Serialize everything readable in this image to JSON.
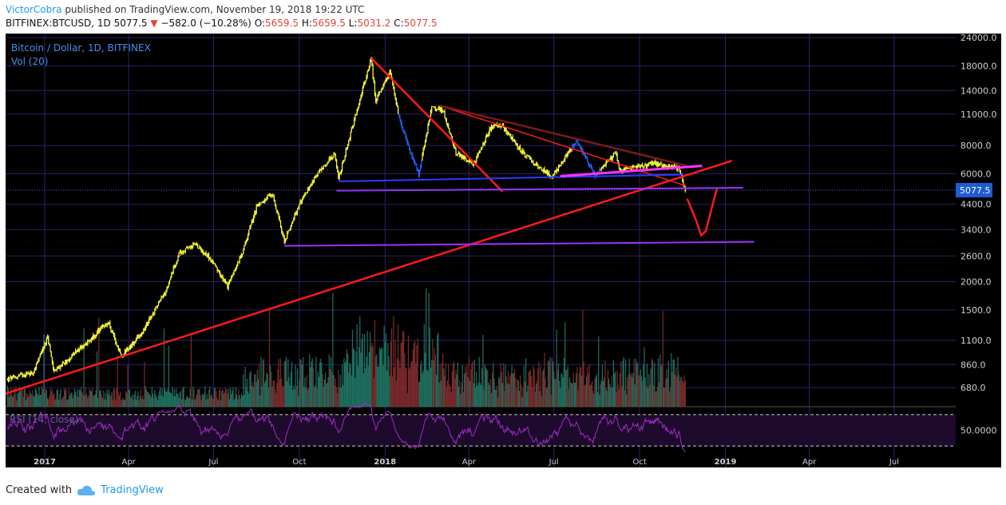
{
  "header": {
    "author": "VictorCobra",
    "published_text": "published on TradingView.com, November 19, 2018 19:22 UTC",
    "symbol_info": "BITFINEX:BTCUSD, 1D",
    "last": "5077.5",
    "change": "−582.0 (−10.28%)",
    "open_label": "O:",
    "open": "5659.5",
    "high_label": "H:",
    "high": "5659.5",
    "low_label": "L:",
    "low": "5031.2",
    "close_label": "C:",
    "close": "5077.5"
  },
  "footer": {
    "created_with": "Created with",
    "brand": "TradingView"
  },
  "colors": {
    "background": "#000000",
    "grid": "#2a2266",
    "candles": "#ffff3a",
    "blue_candles": "#2962ff",
    "red_trendline": "#ff1a1a",
    "pink_line": "#ff33ff",
    "purple_line": "#a030ff",
    "rsi": "#9a2fbf",
    "axis_text": "#cfcfcf",
    "price_tag": "#1e5bd6"
  },
  "chart_data": {
    "type": "candlestick",
    "title": "Bitcoin / Dollar, 1D, BITFINEX",
    "volume_label": "Vol (20)",
    "rsi_label": "RSI (14, close)",
    "y_scale": "log",
    "last_price": "5077.5",
    "y_ticks": [
      "24000.0",
      "18000.0",
      "14000.0",
      "11000.0",
      "8000.0",
      "6000.0",
      "4400.0",
      "3400.0",
      "2600.0",
      "2000.0",
      "1500.0",
      "1100.0",
      "860.0",
      "680.0"
    ],
    "rsi_tick": "50.0000",
    "x_ticks": [
      "2017",
      "Apr",
      "Jul",
      "Oct",
      "2018",
      "Apr",
      "Jul",
      "Oct",
      "2019",
      "Apr",
      "Jul"
    ],
    "x_range": [
      "2016-11-20",
      "2019-09-05"
    ],
    "y_range": [
      560,
      25000
    ],
    "price_path": [
      [
        "2016-11-22",
        740
      ],
      [
        "2016-12-20",
        800
      ],
      [
        "2017-01-04",
        1130
      ],
      [
        "2017-01-11",
        800
      ],
      [
        "2017-02-23",
        1150
      ],
      [
        "2017-03-10",
        1330
      ],
      [
        "2017-03-24",
        940
      ],
      [
        "2017-04-15",
        1180
      ],
      [
        "2017-05-10",
        1800
      ],
      [
        "2017-05-25",
        2650
      ],
      [
        "2017-06-11",
        2950
      ],
      [
        "2017-06-28",
        2500
      ],
      [
        "2017-07-16",
        1900
      ],
      [
        "2017-08-01",
        2700
      ],
      [
        "2017-08-17",
        4350
      ],
      [
        "2017-09-02",
        4900
      ],
      [
        "2017-09-15",
        3000
      ],
      [
        "2017-10-01",
        4400
      ],
      [
        "2017-10-20",
        6000
      ],
      [
        "2017-11-08",
        7400
      ],
      [
        "2017-11-12",
        5700
      ],
      [
        "2017-11-28",
        10000
      ],
      [
        "2017-12-17",
        19500
      ],
      [
        "2017-12-22",
        12500
      ],
      [
        "2018-01-06",
        17000
      ],
      [
        "2018-01-17",
        10200
      ],
      [
        "2018-02-06",
        6000
      ],
      [
        "2018-02-20",
        11700
      ],
      [
        "2018-03-04",
        11500
      ],
      [
        "2018-03-18",
        7400
      ],
      [
        "2018-04-06",
        6600
      ],
      [
        "2018-04-25",
        9700
      ],
      [
        "2018-05-05",
        9900
      ],
      [
        "2018-05-30",
        7300
      ],
      [
        "2018-06-29",
        5800
      ],
      [
        "2018-07-25",
        8400
      ],
      [
        "2018-08-14",
        5900
      ],
      [
        "2018-09-05",
        7400
      ],
      [
        "2018-09-10",
        6200
      ],
      [
        "2018-10-15",
        6700
      ],
      [
        "2018-11-13",
        6300
      ],
      [
        "2018-11-19",
        5077
      ]
    ],
    "drawings": [
      {
        "kind": "red_trendline",
        "from": [
          "2016-11-20",
          640
        ],
        "to": [
          "2019-01-08",
          6850
        ]
      },
      {
        "kind": "red_trendline",
        "from": [
          "2017-12-17",
          19500
        ],
        "to": [
          "2018-05-07",
          5000
        ]
      },
      {
        "kind": "red_trendline",
        "from": [
          "2018-03-01",
          12000
        ],
        "to": [
          "2018-11-20",
          5300
        ]
      },
      {
        "kind": "red_trendline",
        "from": [
          "2018-03-01",
          12000
        ],
        "to": [
          "2018-11-21",
          6500
        ]
      },
      {
        "kind": "blue_line",
        "from": [
          "2017-11-13",
          5550
        ],
        "to": [
          "2018-11-17",
          5950
        ]
      },
      {
        "kind": "pink_line",
        "from": [
          "2018-07-08",
          5850
        ],
        "to": [
          "2018-12-07",
          6500
        ]
      },
      {
        "kind": "purple_line",
        "from": [
          "2017-11-10",
          5050
        ],
        "to": [
          "2019-01-20",
          5200
        ]
      },
      {
        "kind": "purple_line",
        "from": [
          "2017-09-15",
          2880
        ],
        "to": [
          "2019-02-01",
          3000
        ]
      },
      {
        "kind": "projection",
        "points": [
          [
            "2018-11-21",
            4650
          ],
          [
            "2018-12-01",
            3700
          ],
          [
            "2018-12-06",
            3200
          ],
          [
            "2018-12-11",
            3350
          ],
          [
            "2018-12-19",
            4500
          ],
          [
            "2018-12-23",
            5150
          ]
        ]
      }
    ]
  }
}
